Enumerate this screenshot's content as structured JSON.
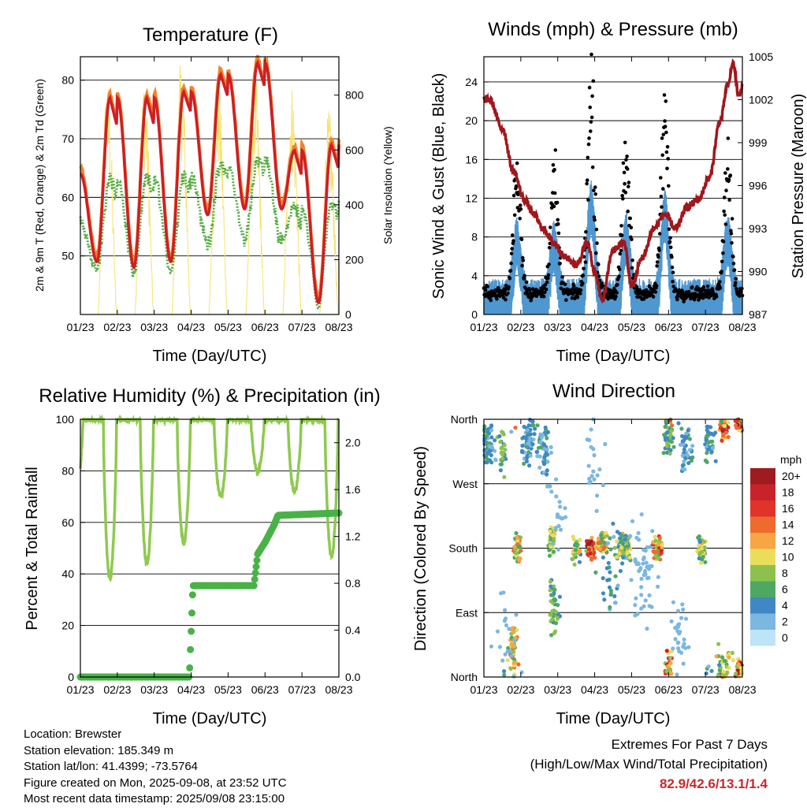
{
  "colors": {
    "temp2m": "#cd1f26",
    "temp9m": "#f5812b",
    "dew": "#56ac44",
    "solar": "#f7e26b",
    "wind": "#4f97d0",
    "gust": "#000000",
    "pressure": "#a0171c",
    "rh": "#8fc94f",
    "rain": "#49b247",
    "extremes": "#c8282d"
  },
  "x_ticks": [
    "01/23",
    "02/23",
    "03/23",
    "04/23",
    "05/23",
    "06/23",
    "07/23",
    "08/23"
  ],
  "panels": {
    "temperature": {
      "title": "Temperature (F)",
      "xlabel": "Time (Day/UTC)",
      "ylabel": "2m & 9m T (Red, Orange) & 2m Td (Green)",
      "ylabel_right": "Solar Insolation (Yellow)",
      "left_ticks": [
        "50",
        "60",
        "70",
        "80"
      ],
      "right_ticks": [
        "0",
        "200",
        "400",
        "600",
        "800"
      ]
    },
    "winds": {
      "title": "Winds (mph) & Pressure (mb)",
      "xlabel": "Time (Day/UTC)",
      "ylabel": "Sonic Wind & Gust (Blue, Black)",
      "ylabel_right": "Station Pressure (Maroon)",
      "left_ticks": [
        "0",
        "4",
        "8",
        "12",
        "16",
        "20",
        "24"
      ],
      "right_ticks": [
        "987",
        "990",
        "993",
        "996",
        "999",
        "1002",
        "1005"
      ]
    },
    "humidity": {
      "title": "Relative Humidity (%) & Precipitation (in)",
      "xlabel": "Time (Day/UTC)",
      "ylabel": "Percent & Total Rainfall",
      "left_ticks": [
        "0",
        "20",
        "40",
        "60",
        "80",
        "100"
      ],
      "right_ticks": [
        "0.0",
        "0.4",
        "0.8",
        "1.2",
        "1.6",
        "2.0"
      ]
    },
    "direction": {
      "title": "Wind Direction",
      "xlabel": "Time (Day/UTC)",
      "ylabel": "Direction (Colored By Speed)",
      "y_ticks": [
        "North",
        "East",
        "South",
        "West",
        "North"
      ],
      "legend_title": "mph",
      "legend_labels": [
        "20+",
        "18",
        "16",
        "14",
        "12",
        "10",
        "8",
        "6",
        "4",
        "2",
        "0"
      ],
      "legend_colors": [
        "#9e1c1f",
        "#c8232a",
        "#e0342b",
        "#ef6a2e",
        "#f8a543",
        "#eadd5c",
        "#8cc14d",
        "#4ea863",
        "#3f88c3",
        "#7cb7e2",
        "#bfe3f7"
      ]
    }
  },
  "chart_data": [
    {
      "type": "line",
      "x": [
        0,
        0.5,
        1,
        1.5,
        2,
        2.5,
        3,
        3.5,
        4,
        4.5,
        5,
        5.5,
        6,
        6.5,
        7
      ],
      "ylim": [
        40,
        84
      ],
      "y2lim": [
        0,
        940
      ],
      "series_samples": {
        "temp2m_lows": [
          49,
          48,
          49,
          57,
          58,
          58,
          42
        ],
        "temp2m_highs": [
          77,
          77,
          78,
          81,
          83,
          68,
          69
        ],
        "dewpoint_range": [
          44,
          72
        ],
        "solar_peaks": [
          860,
          870,
          930,
          880,
          880,
          850,
          750
        ]
      }
    },
    {
      "type": "scatter",
      "ylim": [
        0,
        26.6
      ],
      "y2lim": [
        987,
        1005
      ],
      "gust_peaks": [
        19.4,
        14,
        22.6,
        16.4,
        23,
        15.4
      ],
      "pressure_range": [
        988,
        1004.5
      ]
    },
    {
      "type": "line",
      "ylim": [
        0,
        100
      ],
      "y2lim": [
        0,
        2.2
      ],
      "rh_range": [
        36,
        100
      ],
      "total_rainfall_final": 1.4
    },
    {
      "type": "scatter",
      "categories": [
        "North",
        "East",
        "South",
        "West",
        "North"
      ]
    }
  ],
  "info": {
    "location": "Location: Brewster",
    "elevation": "Station elevation: 185.349 m",
    "latlon": "Station lat/lon: 41.4399; -73.5764",
    "created": "Figure created on Mon, 2025-09-08, at 23:52 UTC",
    "recent": "Most recent data timestamp: 2025/09/08 23:15:00"
  },
  "extremes": {
    "line1": "Extremes For Past 7 Days",
    "line2": "(High/Low/Max Wind/Total Precipitation)",
    "values": "82.9/42.6/13.1/1.4"
  }
}
